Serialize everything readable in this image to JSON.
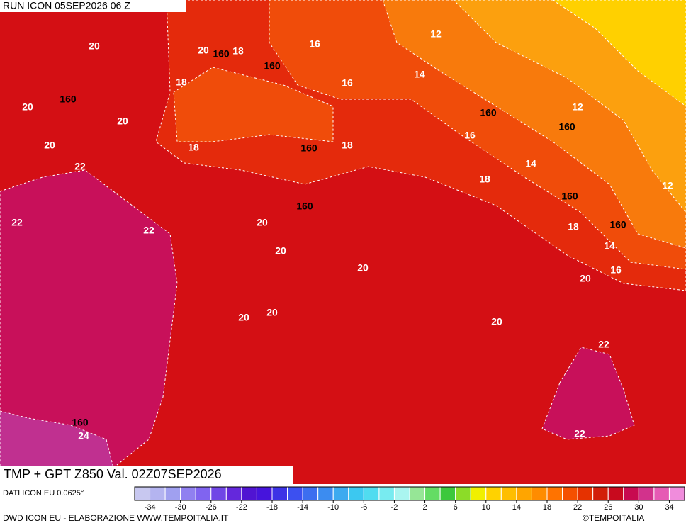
{
  "header": {
    "run": "RUN ICON 05SEP2026 06 Z"
  },
  "map": {
    "contour_labels": [
      20,
      20,
      160,
      18,
      16,
      12,
      160,
      14,
      18,
      16,
      160,
      20,
      20,
      160,
      12,
      160,
      16,
      20,
      18,
      160,
      18,
      14,
      22,
      18,
      12,
      160,
      160,
      22,
      22,
      20,
      18,
      160,
      14,
      20,
      20,
      16,
      20,
      20,
      20,
      20,
      22,
      160,
      24,
      22
    ]
  },
  "title": "TMP + GPT Z850 Val. 02Z07SEP2026",
  "legend": {
    "range": [
      -36,
      36
    ],
    "ticks": [
      -34,
      -30,
      -26,
      -22,
      -18,
      -14,
      -10,
      -6,
      -2,
      2,
      6,
      10,
      14,
      18,
      22,
      26,
      30,
      34
    ],
    "colors": [
      "#c8c8f0",
      "#b4b4f0",
      "#a0a0f0",
      "#9080f0",
      "#8064f0",
      "#7046e6",
      "#6428dc",
      "#5014d2",
      "#4614dc",
      "#3c32e6",
      "#3c50f0",
      "#3c6ef0",
      "#3c8cf0",
      "#3caaf0",
      "#3cc8f0",
      "#50dcf0",
      "#78ebf0",
      "#aaf5f0",
      "#96e696",
      "#64dc64",
      "#3cc83c",
      "#8cdc28",
      "#f0f000",
      "#ffd200",
      "#ffbe00",
      "#ffa500",
      "#ff8c00",
      "#ff7300",
      "#f55000",
      "#e63200",
      "#d21e0a",
      "#c80a1e",
      "#c80a50",
      "#d2328c",
      "#e65ab4",
      "#f08cdc"
    ]
  },
  "footer": {
    "source": "DATI ICON EU 0.0625°",
    "credit": "DWD ICON EU - ELABORAZIONE WWW.TEMPOITALIA.IT",
    "copyright": "©TEMPOITALIA"
  }
}
